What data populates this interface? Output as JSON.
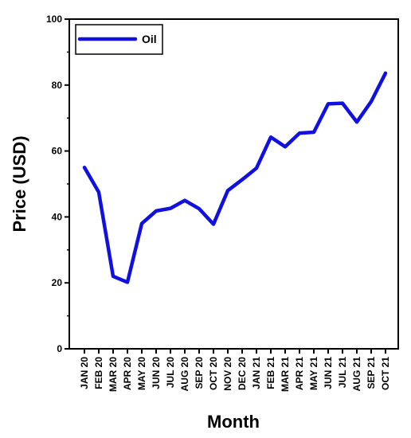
{
  "chart_data": {
    "type": "line",
    "xlabel": "Month",
    "ylabel": "Price (USD)",
    "ylim": [
      0,
      100
    ],
    "yticks": [
      0,
      20,
      40,
      60,
      80,
      100
    ],
    "grid": false,
    "legend_position": "top-left",
    "categories": [
      "JAN 20",
      "FEB 20",
      "MAR 20",
      "APR 20",
      "MAY 20",
      "JUN 20",
      "JUL 20",
      "AUG 20",
      "SEP 20",
      "OCT 20",
      "NOV 20",
      "DEC 20",
      "JAN 21",
      "FEB 21",
      "MAR 21",
      "APR 21",
      "MAY 21",
      "JUN 21",
      "JUL 21",
      "AUG 21",
      "SEP 21",
      "OCT 21"
    ],
    "series": [
      {
        "name": "Oil",
        "color": "#1010e0",
        "values": [
          55.0,
          47.5,
          22.0,
          20.2,
          38.0,
          41.8,
          42.6,
          45.0,
          42.5,
          37.8,
          48.0,
          51.3,
          54.8,
          64.2,
          61.3,
          65.4,
          65.7,
          74.3,
          74.5,
          68.8,
          75.0,
          83.6
        ]
      }
    ]
  }
}
